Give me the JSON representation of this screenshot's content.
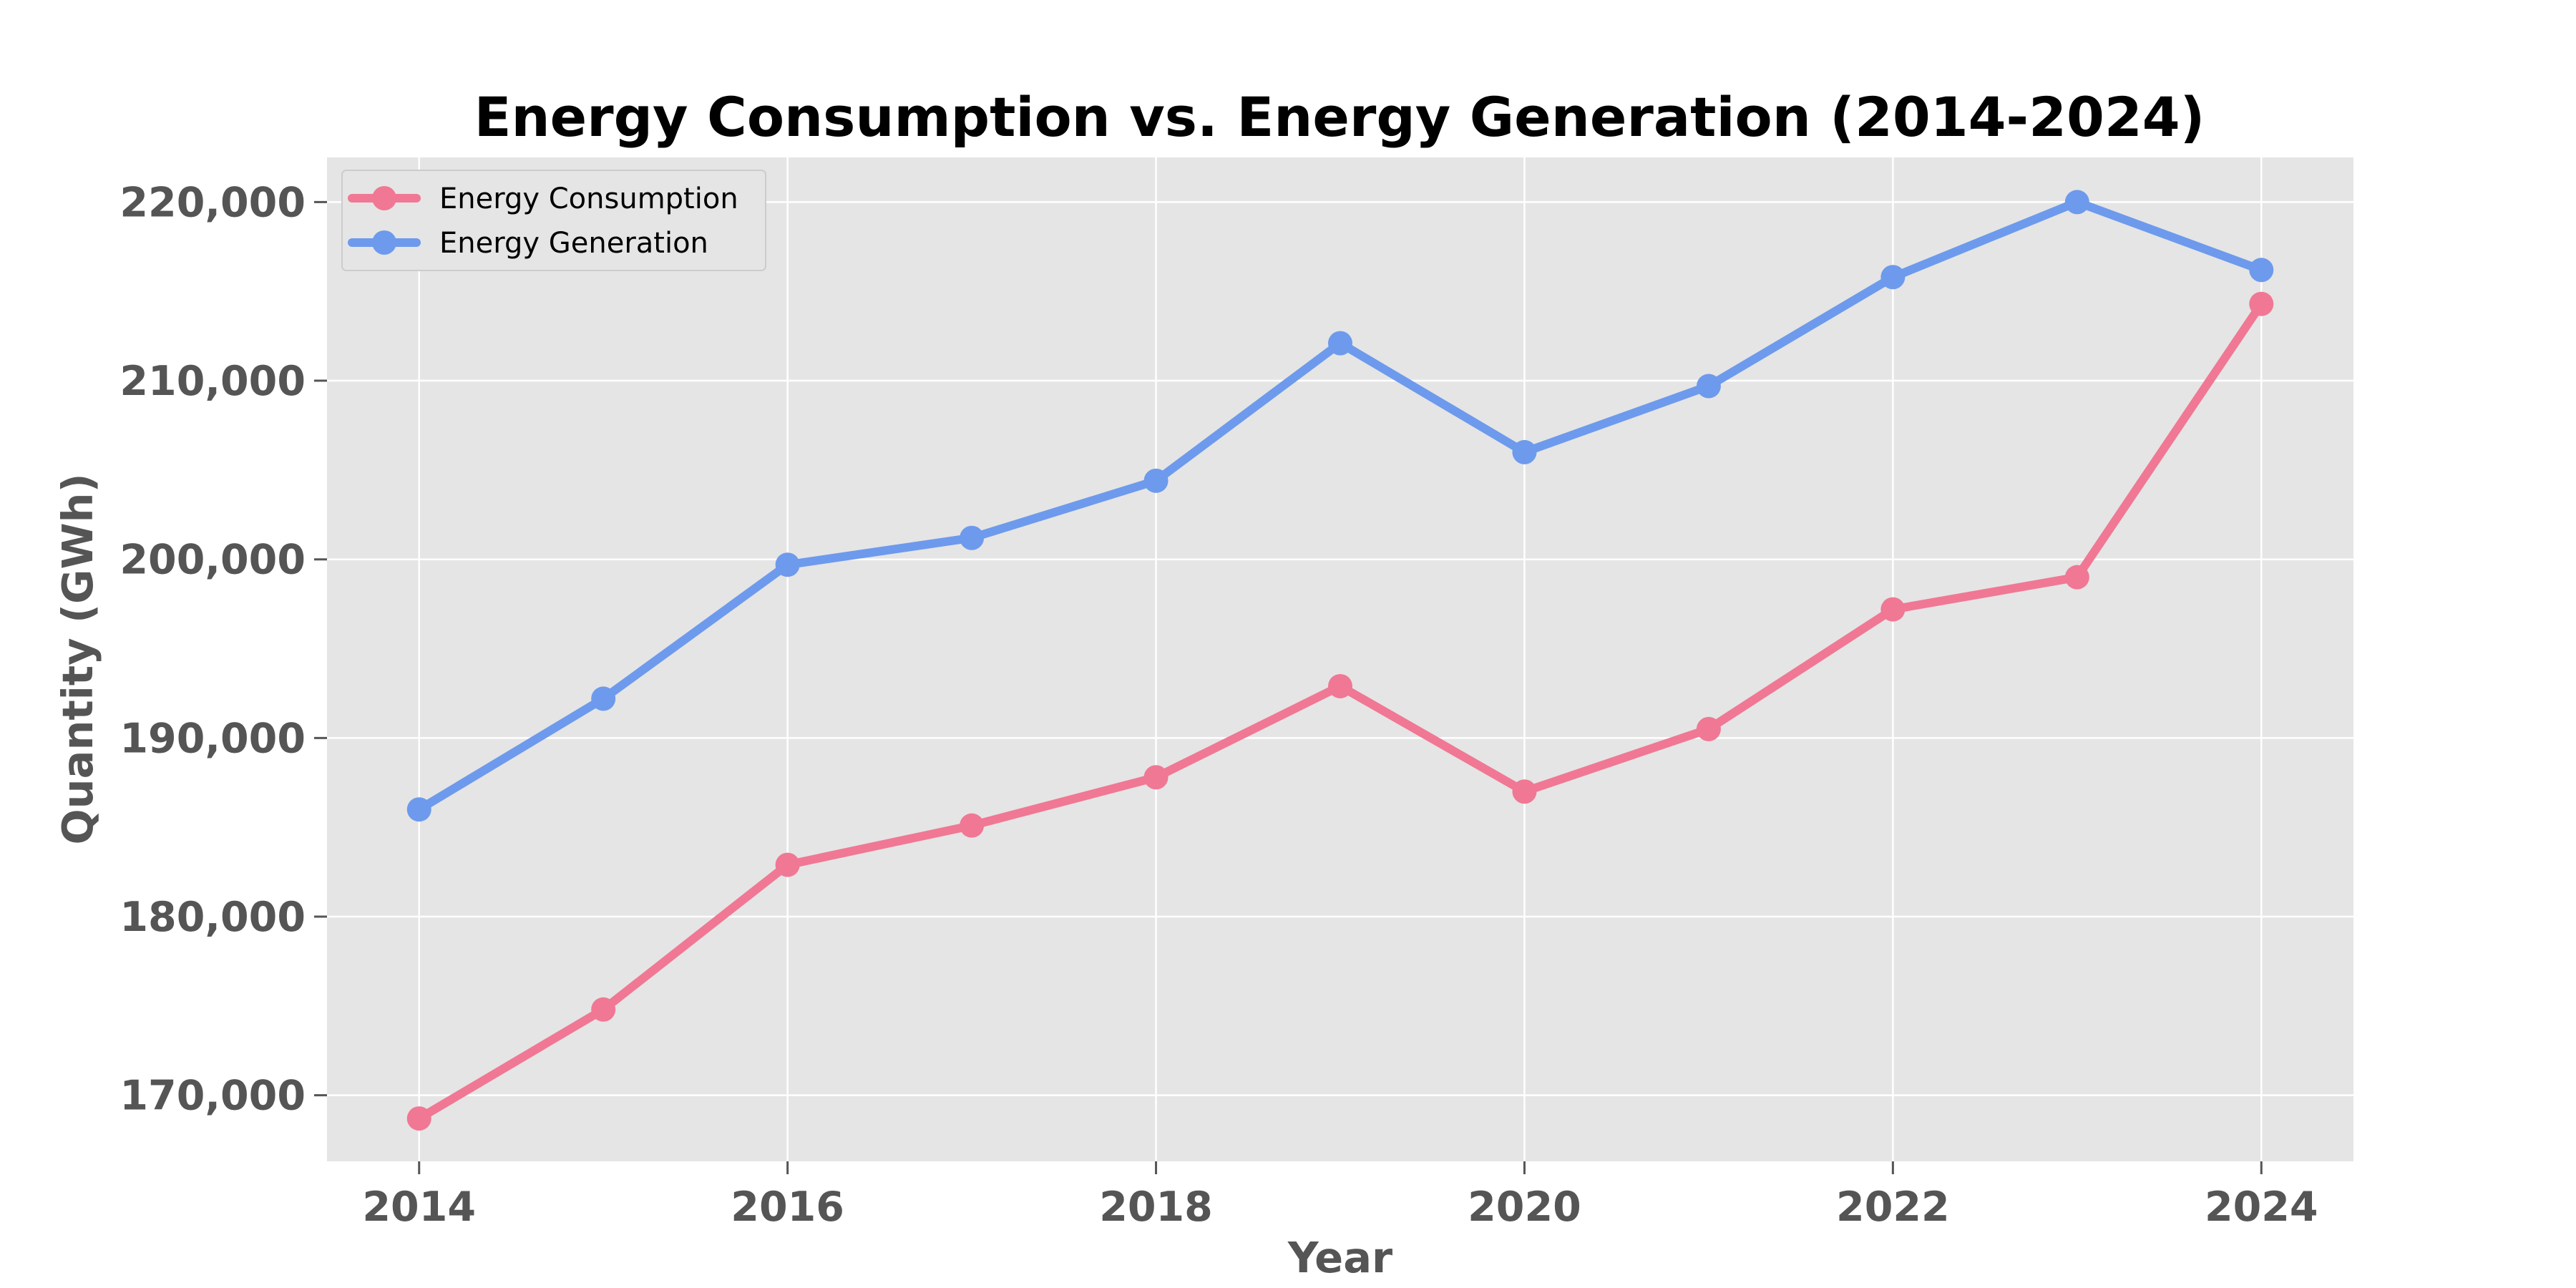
{
  "chart_data": {
    "type": "line",
    "title": "Energy Consumption vs. Energy Generation (2014-2024)",
    "xlabel": "Year",
    "ylabel": "Quantity (GWh)",
    "x": [
      2014,
      2015,
      2016,
      2017,
      2018,
      2019,
      2020,
      2021,
      2022,
      2023,
      2024
    ],
    "xlim": [
      2013.5,
      2024.5
    ],
    "ylim": [
      166300,
      222500
    ],
    "x_ticks": [
      2014,
      2016,
      2018,
      2020,
      2022,
      2024
    ],
    "x_tick_labels": [
      "2014",
      "2016",
      "2018",
      "2020",
      "2022",
      "2024"
    ],
    "y_ticks": [
      170000,
      180000,
      190000,
      200000,
      210000,
      220000
    ],
    "y_tick_labels": [
      "170,000",
      "180,000",
      "190,000",
      "200,000",
      "210,000",
      "220,000"
    ],
    "grid": true,
    "legend_position": "top-left",
    "series": [
      {
        "name": "Energy Consumption",
        "color": "#F07894",
        "values": [
          168700,
          174800,
          182900,
          185100,
          187800,
          192900,
          187000,
          190500,
          197200,
          199000,
          214300
        ]
      },
      {
        "name": "Energy Generation",
        "color": "#6D9AEC",
        "values": [
          186000,
          192200,
          199700,
          201200,
          204400,
          212100,
          206000,
          209700,
          215800,
          220000,
          216200
        ]
      }
    ]
  }
}
